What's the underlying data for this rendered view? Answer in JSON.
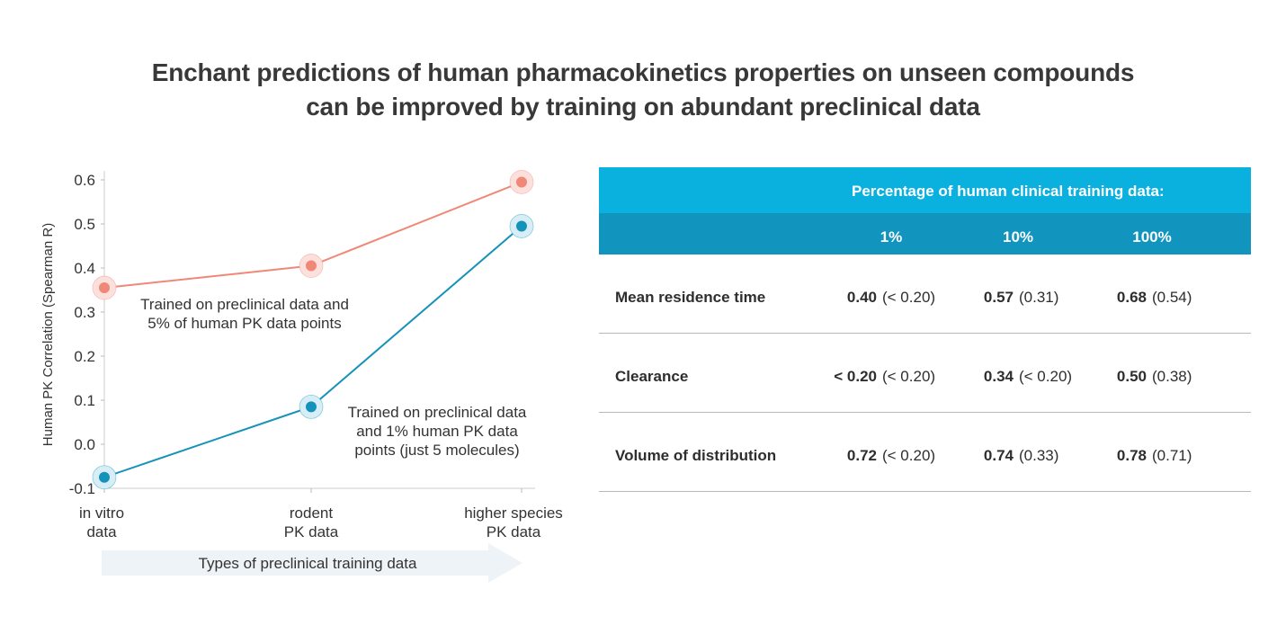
{
  "title": {
    "line1": "Enchant predictions of human pharmacokinetics properties on unseen compounds",
    "line2": "can be improved by training on abundant preclinical data"
  },
  "colors": {
    "salmon": "#f08878",
    "salmon_halo": "#fbe0dc",
    "teal": "#1592b9",
    "teal_halo": "#d7eef6",
    "header_top": "#0ab0de",
    "header_bottom": "#1195bf",
    "arrow_fill": "#eef3f8"
  },
  "chart_data": {
    "type": "line",
    "ylabel": "Human PK Correlation (Spearman R)",
    "xlabel": "Types of preclinical training data",
    "categories": [
      [
        "in vitro",
        "data"
      ],
      [
        "rodent",
        "PK data"
      ],
      [
        "higher species",
        "PK data"
      ]
    ],
    "yticks": [
      "0.6",
      "0.5",
      "0.4",
      "0.3",
      "0.2",
      "0.1",
      "0.0",
      "-0.1"
    ],
    "ylim": [
      -0.1,
      0.6
    ],
    "series": [
      {
        "name": "Trained on preclinical data and 5% of human PK data points",
        "label_lines": [
          "Trained on preclinical data and",
          "5% of human PK data points"
        ],
        "values": [
          0.355,
          0.405,
          0.595
        ]
      },
      {
        "name": "Trained on preclinical data and 1% human PK data points (just 5 molecules)",
        "label_lines": [
          "Trained on preclinical data",
          "and 1% human PK data",
          "points (just 5 molecules)"
        ],
        "values": [
          -0.075,
          0.085,
          0.495
        ]
      }
    ]
  },
  "table": {
    "header": "Percentage of human clinical training data:",
    "columns": [
      "1%",
      "10%",
      "100%"
    ],
    "rows": [
      {
        "label": "Mean residence time",
        "cells": [
          {
            "value": "0.40",
            "paren": "(< 0.20)"
          },
          {
            "value": "0.57",
            "paren": "(0.31)"
          },
          {
            "value": "0.68",
            "paren": "(0.54)"
          }
        ]
      },
      {
        "label": "Clearance",
        "cells": [
          {
            "value": "< 0.20",
            "paren": "(< 0.20)"
          },
          {
            "value": "0.34",
            "paren": "(< 0.20)"
          },
          {
            "value": "0.50",
            "paren": "(0.38)"
          }
        ]
      },
      {
        "label": "Volume of distribution",
        "cells": [
          {
            "value": "0.72",
            "paren": "(< 0.20)"
          },
          {
            "value": "0.74",
            "paren": "(0.33)"
          },
          {
            "value": "0.78",
            "paren": "(0.71)"
          }
        ]
      }
    ]
  }
}
